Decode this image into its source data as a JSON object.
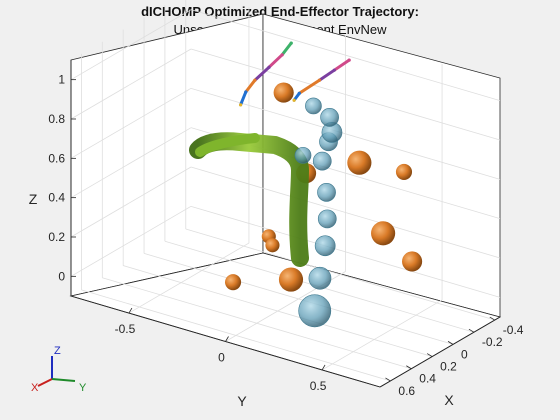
{
  "chart_data": {
    "type": "scatter",
    "title": "dICHOMP Optimized End-Effector Trajectory:",
    "subtitle": "Unseen Target Environment EnvNew",
    "xlabel": "X",
    "ylabel": "Y",
    "zlabel": "Z",
    "x_ticks": [
      "-0.4",
      "-0.2",
      "0",
      "0.2",
      "0.4",
      "0.6"
    ],
    "y_ticks": [
      "-0.5",
      "0",
      "0.5"
    ],
    "z_ticks": [
      "0",
      "0.2",
      "0.4",
      "0.6",
      "0.8",
      "1"
    ],
    "xlim": [
      -0.45,
      0.7
    ],
    "ylim": [
      -0.8,
      0.8
    ],
    "zlim": [
      -0.1,
      1.1
    ],
    "grid": true,
    "colors": {
      "obstacle": "#d97a27",
      "robot_links": "#6aa226",
      "robot_spheres": "#5f9db6",
      "background": "#f0f0f0"
    },
    "series": [
      {
        "kind": "obstacle_spheres",
        "points": [
          {
            "x": 0.05,
            "y": -0.05,
            "z": 0.95,
            "r": 0.05
          },
          {
            "x": 0.15,
            "y": 0.12,
            "z": 0.62,
            "r": 0.05
          },
          {
            "x": 0.25,
            "y": 0.45,
            "z": 0.8,
            "r": 0.06
          },
          {
            "x": 0.1,
            "y": 0.6,
            "z": 0.75,
            "r": 0.04
          },
          {
            "x": 0.3,
            "y": 0.6,
            "z": 0.5,
            "r": 0.06
          },
          {
            "x": 0.3,
            "y": 0.75,
            "z": 0.4,
            "r": 0.05
          },
          {
            "x": 0.1,
            "y": -0.1,
            "z": 0.22,
            "r": 0.035
          },
          {
            "x": 0.25,
            "y": 0.0,
            "z": 0.25,
            "r": 0.035
          },
          {
            "x": 0.35,
            "y": 0.15,
            "z": 0.15,
            "r": 0.06
          },
          {
            "x": 0.35,
            "y": -0.15,
            "z": 0.05,
            "r": 0.04
          }
        ]
      },
      {
        "kind": "robot_collision_spheres",
        "points": [
          {
            "x": 0.4,
            "y": 0.3,
            "z": 0.05,
            "r": 0.08
          },
          {
            "x": 0.35,
            "y": 0.3,
            "z": 0.2,
            "r": 0.055
          },
          {
            "x": 0.3,
            "y": 0.3,
            "z": 0.35,
            "r": 0.05
          },
          {
            "x": 0.28,
            "y": 0.3,
            "z": 0.48,
            "r": 0.045
          },
          {
            "x": 0.25,
            "y": 0.28,
            "z": 0.6,
            "r": 0.045
          },
          {
            "x": 0.18,
            "y": 0.22,
            "z": 0.72,
            "r": 0.045
          },
          {
            "x": 0.12,
            "y": 0.22,
            "z": 0.8,
            "r": 0.045
          },
          {
            "x": 0.05,
            "y": 0.2,
            "z": 0.82,
            "r": 0.05
          },
          {
            "x": -0.02,
            "y": 0.15,
            "z": 0.86,
            "r": 0.045
          },
          {
            "x": -0.05,
            "y": 0.05,
            "z": 0.88,
            "r": 0.04
          },
          {
            "x": 0.05,
            "y": 0.05,
            "z": 0.66,
            "r": 0.04
          }
        ]
      },
      {
        "kind": "trajectory",
        "points": [
          {
            "x": -0.3,
            "y": -0.2,
            "z": 1.05
          },
          {
            "x": -0.25,
            "y": -0.22,
            "z": 1.0
          },
          {
            "x": -0.18,
            "y": -0.25,
            "z": 0.95
          },
          {
            "x": -0.1,
            "y": -0.28,
            "z": 0.9
          },
          {
            "x": -0.05,
            "y": -0.3,
            "z": 0.85
          },
          {
            "x": 0.0,
            "y": -0.3,
            "z": 0.8
          }
        ]
      },
      {
        "kind": "trajectory",
        "points": [
          {
            "x": -0.3,
            "y": 0.1,
            "z": 1.05
          },
          {
            "x": -0.25,
            "y": 0.05,
            "z": 1.0
          },
          {
            "x": -0.2,
            "y": 0.0,
            "z": 0.95
          },
          {
            "x": -0.1,
            "y": -0.05,
            "z": 0.9
          },
          {
            "x": -0.05,
            "y": -0.05,
            "z": 0.88
          }
        ]
      }
    ]
  }
}
